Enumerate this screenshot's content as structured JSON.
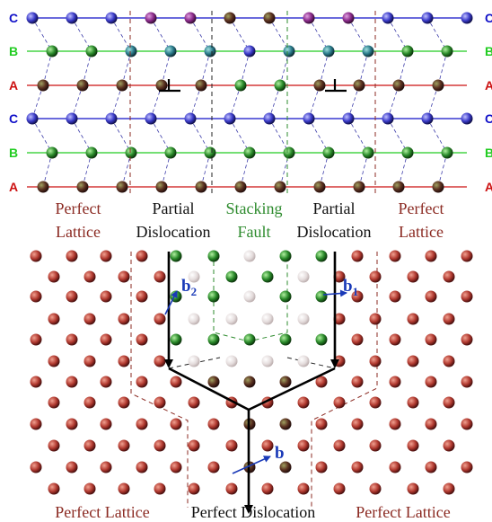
{
  "rows": [
    {
      "label": "C",
      "color": "#1010c8"
    },
    {
      "label": "B",
      "color": "#22cc22"
    },
    {
      "label": "A",
      "color": "#cc1010"
    },
    {
      "label": "C",
      "color": "#1010c8"
    },
    {
      "label": "B",
      "color": "#22cc22"
    },
    {
      "label": "A",
      "color": "#cc1010"
    }
  ],
  "region_labels": [
    {
      "line1": "Perfect",
      "line2": "Lattice",
      "color": "#8b2a22"
    },
    {
      "line1": "Partial",
      "line2": "Dislocation",
      "color": "#111111"
    },
    {
      "line1": "Stacking",
      "line2": "Fault",
      "color": "#2e8b2e"
    },
    {
      "line1": "Partial",
      "line2": "Dislocation",
      "color": "#111111"
    },
    {
      "line1": "Perfect",
      "line2": "Lattice",
      "color": "#8b2a22"
    }
  ],
  "bottom_labels": {
    "left": "Perfect Lattice",
    "center": "Perfect Dislocation",
    "right": "Perfect Lattice"
  },
  "vectors": {
    "b2": {
      "base": "b",
      "sub": "2"
    },
    "b1": {
      "base": "b",
      "sub": "1"
    },
    "b": {
      "base": "b"
    }
  },
  "colors": {
    "atom_a": "#b23a30",
    "atom_b": "#2a8a2a",
    "atom_c": "#3a3ac8",
    "vector": "#1a3ab8",
    "boundary": "#8b2a22"
  }
}
